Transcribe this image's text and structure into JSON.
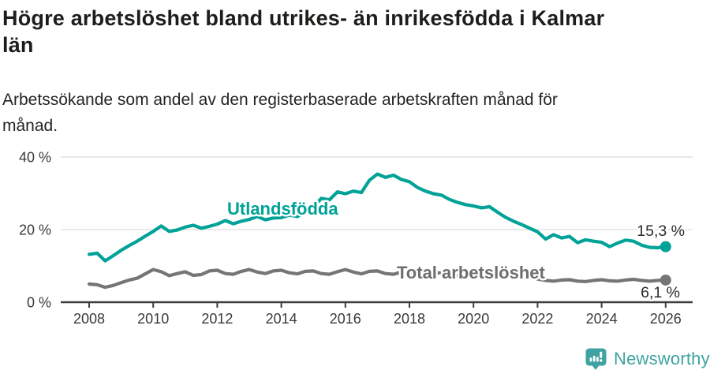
{
  "title_lines": [
    "Högre arbetslöshet bland utrikes- än inrikesfödda i Kalmar",
    "län"
  ],
  "subtitle_lines": [
    "Arbetssökande som andel av den registerbaserade arbetskraften månad för",
    "månad."
  ],
  "footer": {
    "brand": "Newsworthy",
    "logo_icon": "newsworthy-badge-with-bars-and-exclamation"
  },
  "colors": {
    "teal_line": "#00a298",
    "gray_line": "#757575",
    "gray_label": "#6e6e6e",
    "grid": "#dcdcdc",
    "axis": "#3c3c3c",
    "tick_text": "#3a3a3a",
    "value_text": "#2b2b2b",
    "brand_teal": "#3fa3a1"
  },
  "chart_data": {
    "type": "line",
    "title": "Högre arbetslöshet bland utrikes- än inrikesfödda i Kalmar län",
    "subtitle": "Arbetssökande som andel av den registerbaserade arbetskraften månad för månad.",
    "xlabel": "",
    "ylabel": "",
    "grid": "horizontal",
    "legend_position": "inline-labels",
    "x_start": 2008.0,
    "x_step": 0.25,
    "x_ticks": [
      2008,
      2010,
      2012,
      2014,
      2016,
      2018,
      2020,
      2022,
      2024,
      2026
    ],
    "y_ticks": [
      {
        "label": "40 %",
        "value": 40
      },
      {
        "label": "20 %",
        "value": 20
      },
      {
        "label": "0 %",
        "value": 0
      }
    ],
    "ylim": [
      0,
      42
    ],
    "xlim": [
      2007.1,
      2026.9
    ],
    "series": [
      {
        "id": "utlandsfodda",
        "name": "Utlandsfödda",
        "color_key": "teal_line",
        "end_label": "15,3 %",
        "end_value": 15.3,
        "values": [
          13.2,
          13.5,
          11.4,
          12.8,
          14.3,
          15.6,
          16.8,
          18.2,
          19.5,
          21.0,
          19.5,
          19.9,
          20.7,
          21.2,
          20.4,
          20.9,
          21.5,
          22.5,
          21.6,
          22.3,
          22.8,
          23.6,
          22.7,
          23.2,
          23.3,
          24.0,
          23.6,
          24.8,
          26.3,
          28.6,
          28.2,
          30.4,
          29.9,
          30.6,
          30.2,
          33.6,
          35.3,
          34.4,
          35.0,
          33.8,
          33.2,
          31.6,
          30.6,
          29.9,
          29.5,
          28.3,
          27.5,
          26.9,
          26.5,
          26.0,
          26.3,
          24.8,
          23.4,
          22.3,
          21.4,
          20.4,
          19.4,
          17.4,
          18.6,
          17.7,
          18.1,
          16.4,
          17.2,
          16.8,
          16.5,
          15.3,
          16.3,
          17.1,
          16.8,
          15.7,
          15.1,
          15.0,
          15.3
        ]
      },
      {
        "id": "total-arbetsloshet",
        "name": "Total arbetslöshet",
        "color_key": "gray_line",
        "end_label": "6,1 %",
        "end_value": 6.1,
        "values": [
          5.0,
          4.8,
          4.1,
          4.6,
          5.4,
          6.1,
          6.6,
          7.8,
          9.0,
          8.4,
          7.3,
          7.9,
          8.4,
          7.4,
          7.6,
          8.6,
          8.8,
          7.9,
          7.7,
          8.5,
          9.0,
          8.3,
          7.9,
          8.6,
          8.8,
          8.1,
          7.8,
          8.5,
          8.6,
          7.9,
          7.7,
          8.4,
          9.0,
          8.3,
          7.8,
          8.5,
          8.6,
          7.9,
          7.7,
          8.3,
          8.2,
          7.6,
          7.4,
          8.0,
          8.1,
          7.5,
          7.3,
          7.9,
          8.6,
          8.9,
          8.4,
          8.5,
          8.1,
          7.6,
          7.1,
          6.8,
          6.4,
          6.0,
          5.8,
          6.1,
          6.2,
          5.8,
          5.7,
          6.0,
          6.2,
          5.9,
          5.8,
          6.1,
          6.3,
          6.0,
          5.8,
          6.0,
          6.1
        ]
      }
    ]
  }
}
